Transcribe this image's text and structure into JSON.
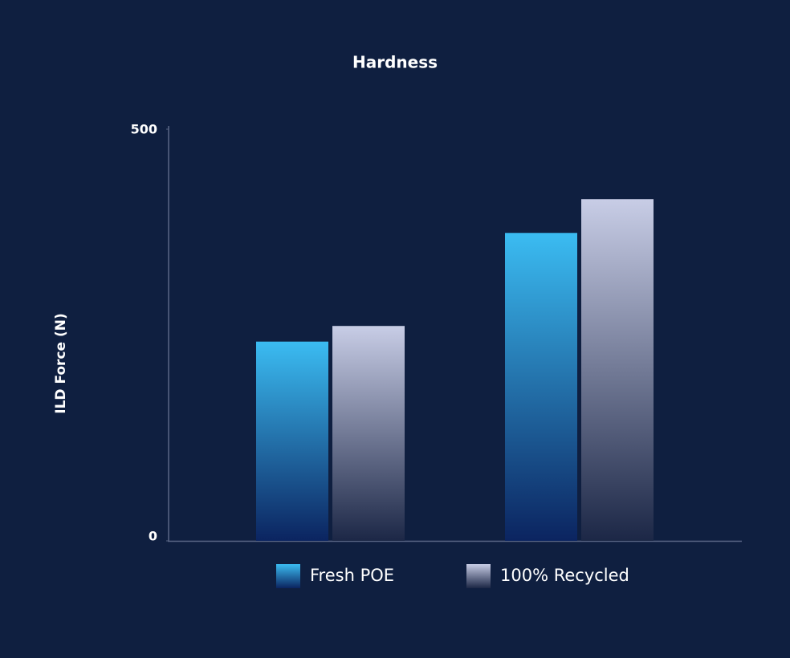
{
  "chart_data": {
    "type": "bar",
    "title": "Hardness",
    "y_label": "ILD Force (N)",
    "categories": [
      null,
      null
    ],
    "series": [
      {
        "name": "Fresh POE",
        "color": "#3bbcf2",
        "values": [
          242,
          374
        ]
      },
      {
        "name": "100% Recycled",
        "color": "#c8cde6",
        "values": [
          261,
          415
        ]
      }
    ],
    "ylim": [
      0,
      500
    ],
    "yticks": [
      0,
      500
    ],
    "grid": false,
    "legend": "bottom"
  }
}
